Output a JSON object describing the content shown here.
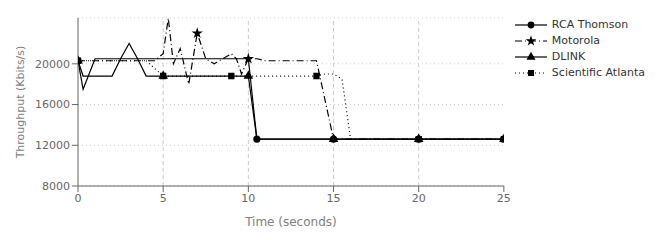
{
  "chart_data": {
    "type": "line",
    "x_label": "Time (seconds)",
    "y_label": "Throughput (Kbits/s)",
    "xlim": [
      0,
      25
    ],
    "ylim": [
      8000,
      24500
    ],
    "xticks": [
      0,
      5,
      10,
      15,
      20,
      25
    ],
    "yticks": [
      8000,
      12000,
      16000,
      20000
    ],
    "grid": true,
    "legend": "upper right",
    "vlines": [
      5,
      10,
      15,
      20
    ],
    "series": [
      {
        "name": "RCA Thomson",
        "color": "black",
        "line_style": "solid",
        "marker": "circle",
        "x": [
          0,
          0.3,
          1.0,
          2.0,
          3.0,
          4.0,
          5.0,
          6.0,
          7.0,
          8.0,
          9.0,
          10.0,
          10.5,
          11.0,
          12.0,
          13.0,
          14.0,
          15.0,
          16.0,
          17.0,
          18.0,
          19.0,
          20.0,
          21.0,
          22.0,
          23.0,
          24.0,
          25.0
        ],
        "values": [
          20300,
          17500,
          20500,
          20500,
          20500,
          20500,
          20500,
          20500,
          20500,
          20500,
          20500,
          20500,
          12600,
          12600,
          12600,
          12600,
          12600,
          12600,
          12600,
          12600,
          12600,
          12600,
          12600,
          12600,
          12600,
          12600,
          12600,
          12600
        ],
        "marker_x": [
          0,
          10.5,
          15.0,
          20.0,
          25.0
        ],
        "marker_y": [
          20300,
          12600,
          12600,
          12600,
          12600
        ]
      },
      {
        "name": "Motorola",
        "color": "black",
        "line_style": "dashdot",
        "marker": "star",
        "x": [
          0,
          0.3,
          1.0,
          2.0,
          3.0,
          4.0,
          4.5,
          5.0,
          5.3,
          5.6,
          6.0,
          6.5,
          7.0,
          7.5,
          8.0,
          8.5,
          9.0,
          9.3,
          9.6,
          10.0,
          10.5,
          11.0,
          12.0,
          13.0,
          14.0,
          15.0,
          25.0
        ],
        "values": [
          20300,
          20300,
          20300,
          20300,
          20300,
          20300,
          20300,
          21000,
          24500,
          20000,
          21500,
          18000,
          23000,
          20500,
          20000,
          20500,
          21000,
          20500,
          19000,
          20500,
          20500,
          20300,
          20300,
          20300,
          20300,
          12600,
          12600
        ],
        "marker_x": [
          7.0,
          10.0
        ],
        "marker_y": [
          23000,
          20500
        ]
      },
      {
        "name": "DLINK",
        "color": "black",
        "line_style": "solid",
        "marker": "triangle",
        "x": [
          0,
          0.3,
          1.0,
          2.0,
          2.5,
          3.0,
          3.5,
          4.0,
          5.0,
          6.0,
          7.0,
          8.0,
          9.0,
          10.0,
          10.5,
          11.0,
          12.0,
          13.0,
          14.0,
          15.0,
          16.0,
          17.0,
          18.0,
          19.0,
          20.0,
          21.0,
          22.0,
          23.0,
          24.0,
          25.0
        ],
        "values": [
          20300,
          18800,
          18800,
          18800,
          20500,
          22000,
          20500,
          18800,
          18800,
          18800,
          18800,
          18800,
          18800,
          18800,
          12600,
          12600,
          12600,
          12600,
          12600,
          12600,
          12600,
          12600,
          12600,
          12600,
          12600,
          12600,
          12600,
          12600,
          12600,
          12600
        ],
        "marker_x": [
          0,
          5.0,
          10.0,
          15.0,
          20.0,
          25.0
        ],
        "marker_y": [
          20300,
          18800,
          18800,
          12600,
          12600,
          12600
        ]
      },
      {
        "name": "Scientific Atlanta",
        "color": "black",
        "line_style": "dotted",
        "marker": "square",
        "x": [
          0,
          0.3,
          1.0,
          2.0,
          3.0,
          4.0,
          5.0,
          6.0,
          7.0,
          8.0,
          9.0,
          10.0,
          11.0,
          12.0,
          13.0,
          14.0,
          14.5,
          15.0,
          15.5,
          16.0,
          17.0,
          18.0,
          19.0,
          20.0,
          21.0,
          22.0,
          23.0,
          24.0,
          25.0
        ],
        "values": [
          20300,
          20300,
          20300,
          20300,
          20300,
          20300,
          18800,
          18800,
          18800,
          18800,
          18800,
          18800,
          18800,
          18800,
          18800,
          18800,
          19000,
          19000,
          18500,
          12600,
          12600,
          12600,
          12600,
          12600,
          12600,
          12600,
          12600,
          12600,
          12600
        ],
        "marker_x": [
          0,
          5.0,
          9.0,
          14.0,
          20.0,
          25.0
        ],
        "marker_y": [
          20300,
          18800,
          18800,
          18800,
          12600,
          12600
        ]
      }
    ]
  }
}
